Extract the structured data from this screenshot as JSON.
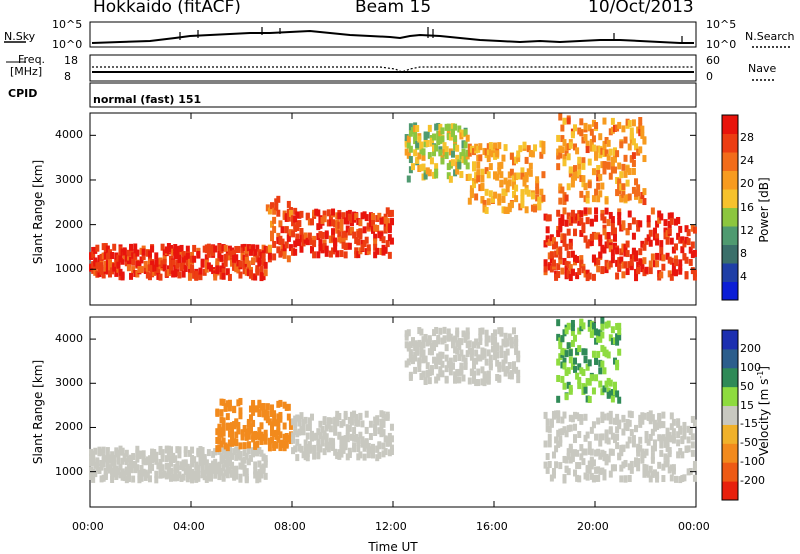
{
  "header": {
    "station": "Hokkaido (fitACF)",
    "beam": "Beam 15",
    "date": "10/Oct/2013"
  },
  "summary": {
    "nsky_label": "N.Sky",
    "nsky_ticks": [
      "10^5",
      "10^0"
    ],
    "nsearch_label": "N.Search",
    "freq_label_1": "Freq.",
    "freq_label_2": "[MHz]",
    "freq_ticks": [
      "18",
      "8"
    ],
    "nave_ticks": [
      "60",
      "0"
    ],
    "nave_label": "Nave",
    "cpid_label": "CPID",
    "cpid_text": "normal (fast) 151"
  },
  "panels": {
    "ylabel": "Slant Range [km]",
    "yticks": [
      "4000",
      "3000",
      "2000",
      "1000"
    ],
    "xlabel": "Time UT",
    "xticks": [
      "00:00",
      "04:00",
      "08:00",
      "12:00",
      "16:00",
      "20:00",
      "00:00"
    ]
  },
  "colorbars": {
    "power": {
      "label": "Power [dB]",
      "ticks": [
        "28",
        "24",
        "20",
        "16",
        "12",
        "8",
        "4"
      ],
      "colors": [
        "#0b1ed6",
        "#1f3fa6",
        "#3a6f6a",
        "#4f9a70",
        "#8cc63f",
        "#f6c22c",
        "#f79b1f",
        "#f26c1a",
        "#ec3d12",
        "#e8140c"
      ]
    },
    "velocity": {
      "label": "Velocity [m s",
      "label_sup": "-1",
      "label_end": "]",
      "ticks": [
        "200",
        "100",
        "50",
        "15",
        "-15",
        "-50",
        "-100",
        "-200"
      ],
      "colors": [
        "#1c2fb0",
        "#2c5e8c",
        "#2f8a57",
        "#8edb3f",
        "#c8c8c0",
        "#f0b12a",
        "#f28a1c",
        "#ee5a14",
        "#e8200c"
      ]
    }
  },
  "chart_data": [
    {
      "type": "heatmap",
      "title": "Power",
      "xlabel": "Time UT",
      "ylabel": "Slant Range [km]",
      "xlim": [
        "00:00",
        "24:00"
      ],
      "ylim": [
        200,
        4500
      ],
      "colorbar_label": "Power [dB]",
      "colorbar_range": [
        0,
        32
      ],
      "echo_bands": [
        {
          "t": [
            0,
            7
          ],
          "range_km": [
            800,
            1500
          ],
          "power_db": 28
        },
        {
          "t": [
            7,
            8
          ],
          "range_km": [
            1200,
            2600
          ],
          "power_db": 26
        },
        {
          "t": [
            8,
            12
          ],
          "range_km": [
            1300,
            2300
          ],
          "power_db": 28
        },
        {
          "t": [
            12.5,
            15
          ],
          "range_km": [
            3000,
            4200
          ],
          "power_db": 16
        },
        {
          "t": [
            15,
            18
          ],
          "range_km": [
            2300,
            3800
          ],
          "power_db": 20
        },
        {
          "t": [
            18,
            24
          ],
          "range_km": [
            800,
            2300
          ],
          "power_db": 28
        },
        {
          "t": [
            18.5,
            22
          ],
          "range_km": [
            2500,
            4400
          ],
          "power_db": 22
        }
      ]
    },
    {
      "type": "heatmap",
      "title": "Velocity",
      "xlabel": "Time UT",
      "ylabel": "Slant Range [km]",
      "xlim": [
        "00:00",
        "24:00"
      ],
      "ylim": [
        200,
        4500
      ],
      "colorbar_label": "Velocity [m s-1]",
      "colorbar_range": [
        -200,
        200
      ],
      "echo_bands": [
        {
          "t": [
            0,
            7
          ],
          "range_km": [
            800,
            1500
          ],
          "velocity": 0
        },
        {
          "t": [
            5,
            8
          ],
          "range_km": [
            1500,
            2600
          ],
          "velocity": -50
        },
        {
          "t": [
            8,
            12
          ],
          "range_km": [
            1300,
            2300
          ],
          "velocity": 0
        },
        {
          "t": [
            12.5,
            17
          ],
          "range_km": [
            3000,
            4200
          ],
          "velocity": 0
        },
        {
          "t": [
            18,
            24
          ],
          "range_km": [
            800,
            2300
          ],
          "velocity": 0
        },
        {
          "t": [
            18.5,
            21
          ],
          "range_km": [
            2600,
            4400
          ],
          "velocity": 30
        }
      ]
    }
  ]
}
